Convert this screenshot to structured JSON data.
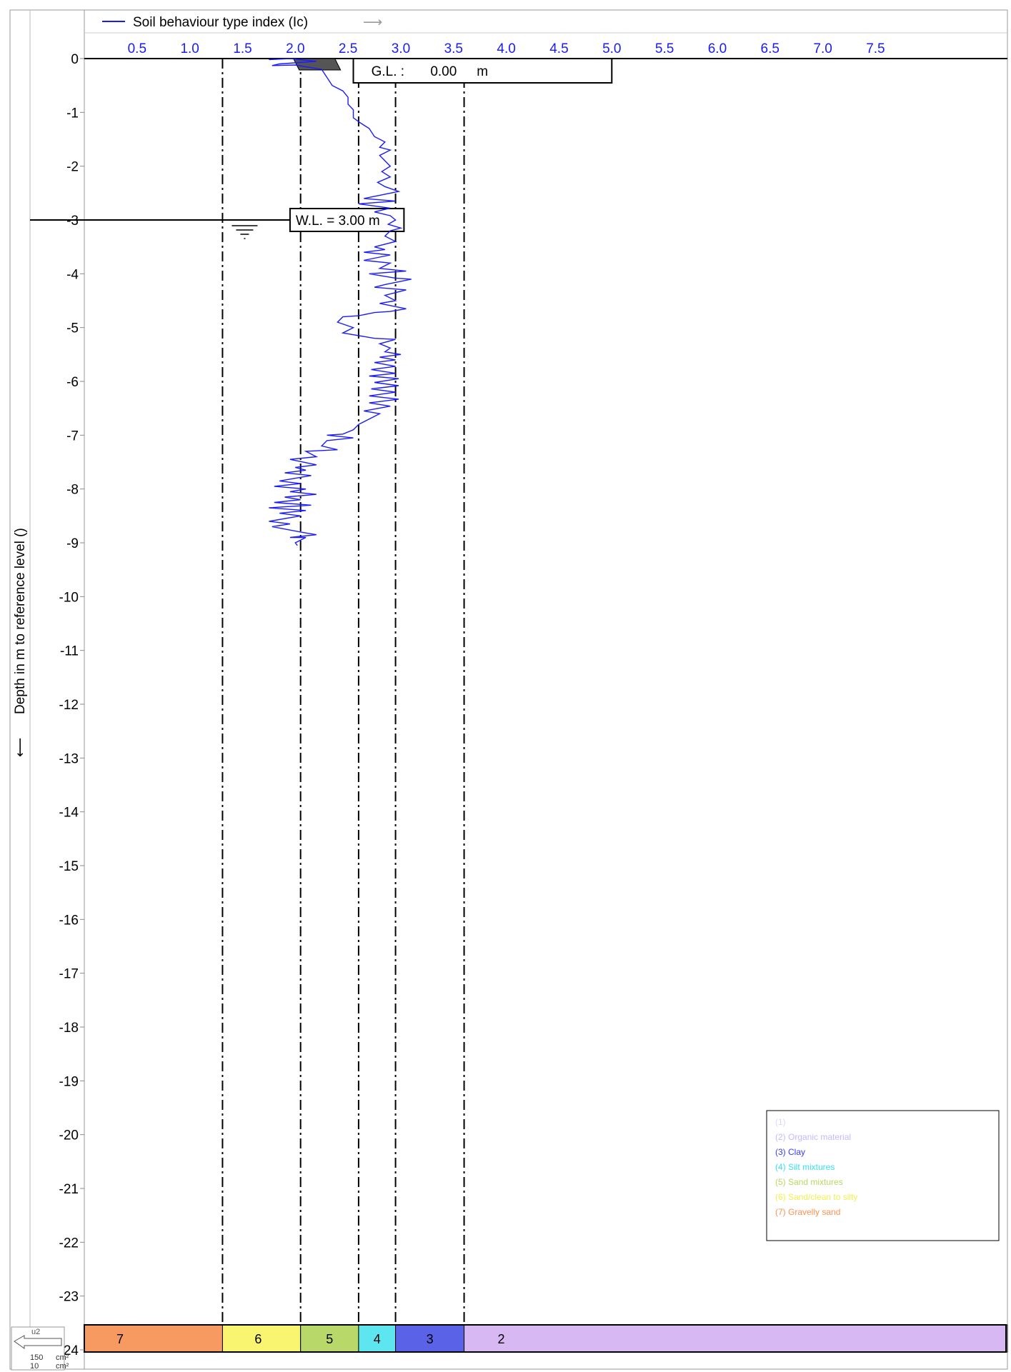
{
  "chart_data": {
    "type": "line",
    "title": "Soil behaviour type index (Ic)",
    "title_arrow": "⟶",
    "xlabel": "",
    "ylabel": "Depth in m to reference level ()",
    "ylabel_arrow": "⟵",
    "xlim": [
      0,
      8.75
    ],
    "ylim": [
      -24,
      0
    ],
    "x_ticks": [
      "0.5",
      "1.0",
      "1.5",
      "2.0",
      "2.5",
      "3.0",
      "3.5",
      "4.0",
      "4.5",
      "5.0",
      "5.5",
      "6.0",
      "6.5",
      "7.0",
      "7.5"
    ],
    "y_ticks": [
      "0",
      "-1",
      "-2",
      "-3",
      "-4",
      "-5",
      "-6",
      "-7",
      "-8",
      "-9",
      "-10",
      "-11",
      "-12",
      "-13",
      "-14",
      "-15",
      "-16",
      "-17",
      "-18",
      "-19",
      "-20",
      "-21",
      "-22",
      "-23",
      "-24"
    ],
    "boundaries": [
      1.31,
      2.05,
      2.6,
      2.95,
      3.6
    ],
    "series": [
      {
        "name": "Soil behaviour type index (Ic)",
        "color": "#1a1aff",
        "points": [
          [
            1.75,
            -0.02
          ],
          [
            1.95,
            0.0
          ],
          [
            2.2,
            -0.05
          ],
          [
            1.85,
            -0.1
          ],
          [
            1.78,
            -0.13
          ],
          [
            2.0,
            -0.12
          ],
          [
            2.25,
            -0.2
          ],
          [
            2.3,
            -0.35
          ],
          [
            2.35,
            -0.5
          ],
          [
            2.45,
            -0.6
          ],
          [
            2.5,
            -0.72
          ],
          [
            2.5,
            -0.85
          ],
          [
            2.55,
            -0.95
          ],
          [
            2.55,
            -1.1
          ],
          [
            2.62,
            -1.2
          ],
          [
            2.7,
            -1.3
          ],
          [
            2.75,
            -1.45
          ],
          [
            2.85,
            -1.55
          ],
          [
            2.8,
            -1.65
          ],
          [
            2.9,
            -1.7
          ],
          [
            2.8,
            -1.8
          ],
          [
            2.85,
            -1.9
          ],
          [
            2.9,
            -2.0
          ],
          [
            2.82,
            -2.1
          ],
          [
            2.9,
            -2.2
          ],
          [
            2.78,
            -2.3
          ],
          [
            2.85,
            -2.38
          ],
          [
            2.98,
            -2.47
          ],
          [
            2.65,
            -2.6
          ],
          [
            2.95,
            -2.65
          ],
          [
            2.6,
            -2.7
          ],
          [
            2.9,
            -2.78
          ],
          [
            2.75,
            -2.85
          ],
          [
            2.9,
            -2.92
          ],
          [
            2.95,
            -3.0
          ],
          [
            2.88,
            -3.08
          ],
          [
            3.0,
            -3.15
          ],
          [
            2.9,
            -3.2
          ],
          [
            2.85,
            -3.3
          ],
          [
            2.95,
            -3.4
          ],
          [
            2.75,
            -3.5
          ],
          [
            2.85,
            -3.55
          ],
          [
            2.65,
            -3.6
          ],
          [
            2.9,
            -3.65
          ],
          [
            2.65,
            -3.75
          ],
          [
            2.9,
            -3.8
          ],
          [
            2.8,
            -3.9
          ],
          [
            3.05,
            -3.95
          ],
          [
            2.7,
            -4.0
          ],
          [
            2.95,
            -4.08
          ],
          [
            3.1,
            -4.1
          ],
          [
            2.85,
            -4.2
          ],
          [
            2.75,
            -4.25
          ],
          [
            3.05,
            -4.3
          ],
          [
            2.85,
            -4.4
          ],
          [
            2.95,
            -4.5
          ],
          [
            2.8,
            -4.55
          ],
          [
            3.05,
            -4.65
          ],
          [
            2.9,
            -4.7
          ],
          [
            2.75,
            -4.72
          ],
          [
            2.6,
            -4.78
          ],
          [
            2.45,
            -4.8
          ],
          [
            2.4,
            -4.9
          ],
          [
            2.55,
            -5.0
          ],
          [
            2.45,
            -5.1
          ],
          [
            2.75,
            -5.2
          ],
          [
            2.95,
            -5.22
          ],
          [
            2.8,
            -5.3
          ],
          [
            2.9,
            -5.38
          ],
          [
            2.85,
            -5.45
          ],
          [
            3.0,
            -5.5
          ],
          [
            2.8,
            -5.55
          ],
          [
            2.95,
            -5.6
          ],
          [
            2.75,
            -5.65
          ],
          [
            2.95,
            -5.72
          ],
          [
            2.72,
            -5.78
          ],
          [
            2.95,
            -5.85
          ],
          [
            2.7,
            -5.9
          ],
          [
            2.98,
            -5.95
          ],
          [
            2.75,
            -6.02
          ],
          [
            2.98,
            -6.08
          ],
          [
            2.72,
            -6.14
          ],
          [
            2.95,
            -6.2
          ],
          [
            2.7,
            -6.27
          ],
          [
            2.98,
            -6.33
          ],
          [
            2.7,
            -6.4
          ],
          [
            2.9,
            -6.46
          ],
          [
            2.65,
            -6.55
          ],
          [
            2.8,
            -6.6
          ],
          [
            2.7,
            -6.7
          ],
          [
            2.6,
            -6.8
          ],
          [
            2.55,
            -6.9
          ],
          [
            2.45,
            -6.98
          ],
          [
            2.3,
            -7.0
          ],
          [
            2.55,
            -7.05
          ],
          [
            2.3,
            -7.1
          ],
          [
            2.25,
            -7.2
          ],
          [
            2.4,
            -7.27
          ],
          [
            2.1,
            -7.3
          ],
          [
            2.2,
            -7.4
          ],
          [
            1.95,
            -7.45
          ],
          [
            2.2,
            -7.55
          ],
          [
            2.0,
            -7.6
          ],
          [
            2.1,
            -7.65
          ],
          [
            1.9,
            -7.7
          ],
          [
            2.15,
            -7.75
          ],
          [
            1.85,
            -7.85
          ],
          [
            2.05,
            -7.9
          ],
          [
            1.8,
            -7.95
          ],
          [
            2.1,
            -8.0
          ],
          [
            1.95,
            -8.05
          ],
          [
            2.2,
            -8.1
          ],
          [
            1.9,
            -8.15
          ],
          [
            2.05,
            -8.2
          ],
          [
            1.8,
            -8.25
          ],
          [
            2.15,
            -8.3
          ],
          [
            1.75,
            -8.35
          ],
          [
            2.1,
            -8.4
          ],
          [
            1.85,
            -8.45
          ],
          [
            2.05,
            -8.5
          ],
          [
            1.75,
            -8.6
          ],
          [
            1.95,
            -8.65
          ],
          [
            1.78,
            -8.7
          ],
          [
            2.05,
            -8.8
          ],
          [
            2.2,
            -8.85
          ],
          [
            1.95,
            -8.9
          ],
          [
            2.1,
            -8.9
          ],
          [
            2.0,
            -9.0
          ],
          [
            2.02,
            -9.05
          ]
        ]
      }
    ],
    "ground_level": {
      "label": "G.L. :",
      "value": "0.00",
      "unit": "m"
    },
    "water_level": {
      "label": "W.L. = 3.00 m",
      "depth": -3.0
    },
    "legend": {
      "placement": "bottom-right",
      "items": [
        {
          "label": "(1)",
          "color": "#d8d8ff"
        },
        {
          "label": "(2) Organic material",
          "color": "#c8b8ff"
        },
        {
          "label": "(3) Clay",
          "color": "#3a3aff"
        },
        {
          "label": "(4) Silt mixtures",
          "color": "#38e0f0"
        },
        {
          "label": "(5) Sand mixtures",
          "color": "#b8d860"
        },
        {
          "label": "(6) Sand/clean to silty",
          "color": "#f0f050"
        },
        {
          "label": "(7) Gravelly sand",
          "color": "#ff9050"
        }
      ]
    },
    "zones": [
      {
        "label": "7",
        "x0": 0,
        "x1": 1.31,
        "color": "#f79a62"
      },
      {
        "label": "6",
        "x0": 1.31,
        "x1": 2.05,
        "color": "#f9f571"
      },
      {
        "label": "5",
        "x0": 2.05,
        "x1": 2.6,
        "color": "#b8d86a"
      },
      {
        "label": "4",
        "x0": 2.6,
        "x1": 2.95,
        "color": "#5de6f0"
      },
      {
        "label": "3",
        "x0": 2.95,
        "x1": 3.6,
        "color": "#5a62e8"
      },
      {
        "label": "2",
        "x0": 3.6,
        "x1": 8.75,
        "color": "#d8b8f2"
      }
    ],
    "probe": {
      "tag": "u2",
      "area_1": "150",
      "unit_1": "cm²",
      "area_2": "10",
      "unit_2": "cm²"
    }
  }
}
